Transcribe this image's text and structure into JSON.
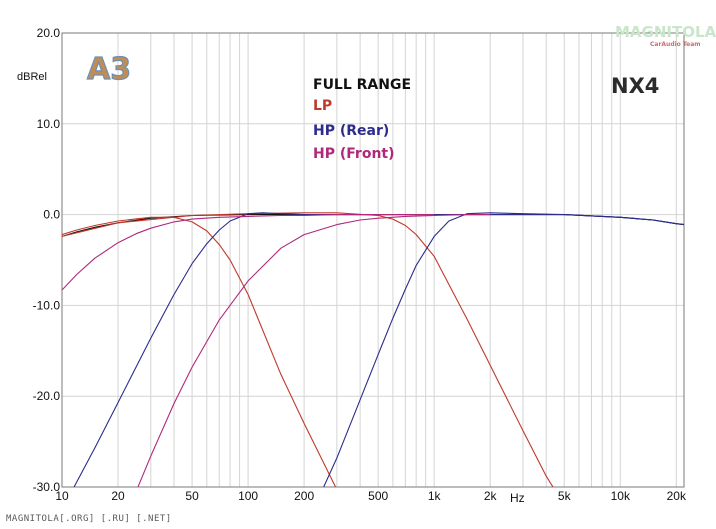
{
  "chart_data": {
    "type": "line",
    "ylabel": "dBRel",
    "xlabel": "Hz",
    "xscale": "log",
    "xlim": [
      10,
      22000
    ],
    "ylim": [
      -30,
      20
    ],
    "grid": true,
    "x_ticks": [
      {
        "v": 10,
        "label": "10"
      },
      {
        "v": 20,
        "label": "20"
      },
      {
        "v": 50,
        "label": "50"
      },
      {
        "v": 100,
        "label": "100"
      },
      {
        "v": 200,
        "label": "200"
      },
      {
        "v": 500,
        "label": "500"
      },
      {
        "v": 1000,
        "label": "1k"
      },
      {
        "v": 2000,
        "label": "2k"
      },
      {
        "v": 5000,
        "label": "5k"
      },
      {
        "v": 10000,
        "label": "10k"
      },
      {
        "v": 20000,
        "label": "20k"
      }
    ],
    "y_ticks": [
      {
        "v": 20,
        "label": "20.0"
      },
      {
        "v": 10,
        "label": "10.0"
      },
      {
        "v": 0,
        "label": "0.0"
      },
      {
        "v": -10,
        "label": "-10.0"
      },
      {
        "v": -20,
        "label": "-20.0"
      },
      {
        "v": -30,
        "label": "-30.0"
      }
    ],
    "series": [
      {
        "name": "FULL RANGE",
        "color": "#111111",
        "x": [
          10,
          12,
          15,
          20,
          30,
          50,
          100,
          200,
          500,
          1000,
          2000,
          5000,
          10000,
          15000,
          20000,
          22000
        ],
        "y": [
          -2.4,
          -1.9,
          -1.4,
          -0.9,
          -0.4,
          -0.1,
          0,
          0,
          0,
          0,
          0,
          0,
          -0.3,
          -0.6,
          -1.0,
          -1.1
        ]
      },
      {
        "name": "LP",
        "color": "#c0392b",
        "x": [
          10,
          12,
          15,
          20,
          30,
          40,
          50,
          60,
          70,
          80,
          100,
          150,
          200,
          300,
          350
        ],
        "y": [
          -2.2,
          -1.7,
          -1.2,
          -0.7,
          -0.3,
          -0.3,
          -0.8,
          -1.8,
          -3.3,
          -5.0,
          -8.8,
          -17.6,
          -23.0,
          -30.3,
          -32.0
        ]
      },
      {
        "name": "LP",
        "color": "#c0392b",
        "x": [
          10,
          20,
          50,
          100,
          200,
          300,
          500,
          600,
          700,
          800,
          1000,
          1500,
          2000,
          3000,
          4000,
          5000
        ],
        "y": [
          -2.4,
          -0.9,
          -0.1,
          0.1,
          0.2,
          0.2,
          -0.1,
          -0.5,
          -1.2,
          -2.2,
          -4.6,
          -11.5,
          -16.6,
          -23.8,
          -28.8,
          -32.0
        ]
      },
      {
        "name": "HP (Rear)",
        "color": "#2c2c8c",
        "x": [
          8,
          10,
          15,
          20,
          30,
          40,
          50,
          60,
          70,
          80,
          100,
          120,
          150,
          200,
          500,
          1000,
          2000,
          5000,
          10000,
          15000,
          20000,
          22000
        ],
        "y": [
          -36,
          -32.5,
          -25.7,
          -20.7,
          -13.6,
          -8.8,
          -5.4,
          -3.2,
          -1.7,
          -0.7,
          0.1,
          0.2,
          0.1,
          0,
          0,
          0,
          0,
          0,
          -0.3,
          -0.6,
          -1.0,
          -1.1
        ]
      },
      {
        "name": "HP (Rear)",
        "color": "#2c2c8c",
        "x": [
          230,
          300,
          400,
          500,
          600,
          700,
          800,
          1000,
          1200,
          1500,
          2000,
          3000,
          5000,
          10000,
          15000,
          20000,
          22000
        ],
        "y": [
          -32,
          -26.8,
          -20.4,
          -15.4,
          -11.4,
          -8.2,
          -5.6,
          -2.4,
          -0.7,
          0.1,
          0.2,
          0.1,
          0,
          -0.3,
          -0.6,
          -1.0,
          -1.1
        ]
      },
      {
        "name": "HP (Front)",
        "color": "#b0287a",
        "x": [
          10,
          12,
          15,
          20,
          25,
          30,
          40,
          50,
          70,
          100,
          150,
          200,
          300,
          500,
          1000
        ],
        "y": [
          -8.3,
          -6.6,
          -4.8,
          -3.1,
          -2.1,
          -1.5,
          -0.8,
          -0.5,
          -0.3,
          -0.2,
          -0.1,
          -0.1,
          0,
          0,
          0
        ]
      },
      {
        "name": "HP (Front)",
        "color": "#b0287a",
        "x": [
          25,
          30,
          40,
          50,
          70,
          100,
          150,
          200,
          300,
          400,
          500,
          700,
          1000,
          1500,
          2000
        ],
        "y": [
          -30.5,
          -26.6,
          -20.8,
          -16.8,
          -11.6,
          -7.3,
          -3.7,
          -2.2,
          -1.1,
          -0.6,
          -0.4,
          -0.2,
          -0.1,
          0,
          0
        ]
      }
    ]
  },
  "legend": [
    {
      "label": "FULL RANGE",
      "color": "#111111"
    },
    {
      "label": "LP",
      "color": "#c0392b"
    },
    {
      "label": "HP (Rear)",
      "color": "#2c2c8c"
    },
    {
      "label": "HP (Front)",
      "color": "#b0287a"
    }
  ],
  "badge": {
    "label": "A3"
  },
  "model": {
    "label": "NX4"
  },
  "watermark": {
    "label": "MAGNITOLA",
    "sub": "CarAudio Team"
  },
  "footer": {
    "text": "MAGNITOLA[.ORG] [.RU] [.NET]"
  }
}
